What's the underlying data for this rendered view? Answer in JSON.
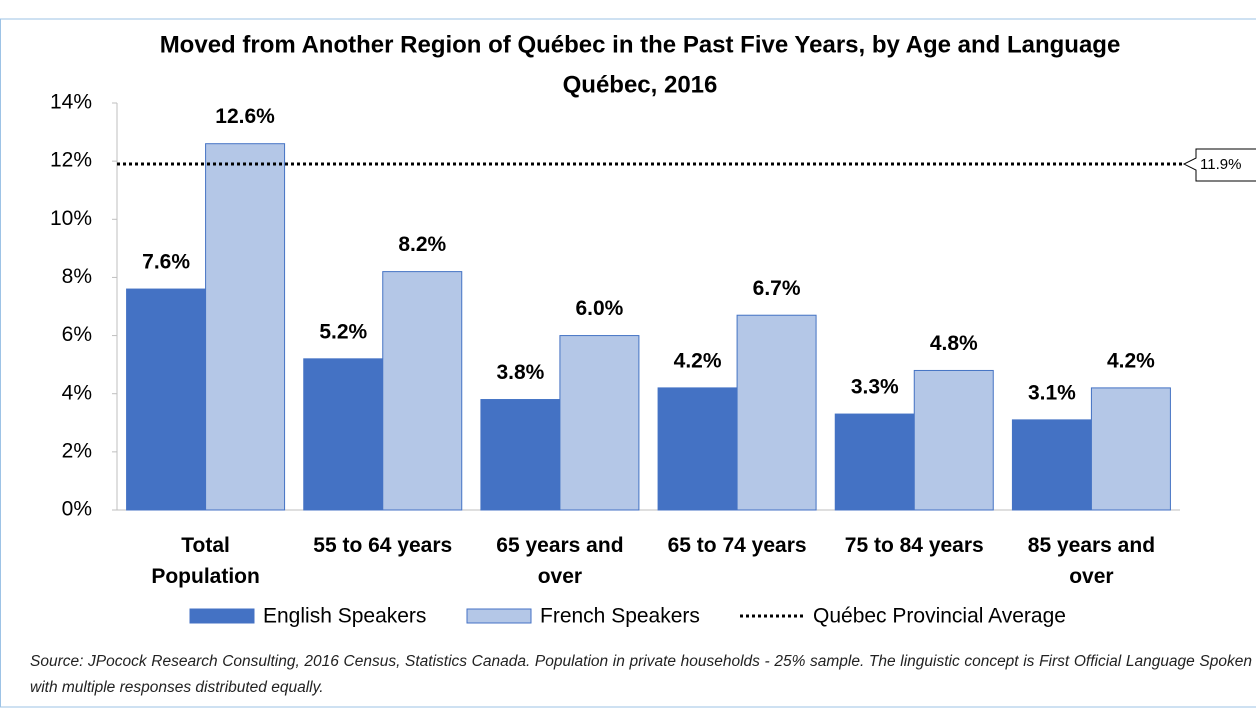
{
  "chart_data": {
    "type": "bar",
    "title": "Moved from Another Region of Québec in the Past Five Years, by Age and Language",
    "subtitle": "Québec, 2016",
    "categories": [
      "Total\nPopulation",
      "55 to 64 years",
      "65 years and\nover",
      "65 to 74 years",
      "75 to 84 years",
      "85 years and\nover"
    ],
    "series": [
      {
        "name": "English Speakers",
        "color": "#4472c4",
        "values": [
          7.6,
          5.2,
          3.8,
          4.2,
          3.3,
          3.1
        ],
        "value_labels": [
          "7.6%",
          "5.2%",
          "3.8%",
          "4.2%",
          "3.3%",
          "3.1%"
        ]
      },
      {
        "name": "French Speakers",
        "color": "#b4c7e7",
        "values": [
          12.6,
          8.2,
          6.0,
          6.7,
          4.8,
          4.2
        ],
        "value_labels": [
          "12.6%",
          "8.2%",
          "6.0%",
          "6.7%",
          "4.8%",
          "4.2%"
        ]
      }
    ],
    "reference": {
      "name": "Québec Provincial Average",
      "value": 11.9,
      "value_label": "11.9%"
    },
    "ylim": [
      0,
      14
    ],
    "yticks": [
      {
        "value": 0,
        "label": "0%"
      },
      {
        "value": 2,
        "label": "2%"
      },
      {
        "value": 4,
        "label": "4%"
      },
      {
        "value": 6,
        "label": "6%"
      },
      {
        "value": 8,
        "label": "8%"
      },
      {
        "value": 10,
        "label": "10%"
      },
      {
        "value": 12,
        "label": "12%"
      },
      {
        "value": 14,
        "label": "14%"
      }
    ],
    "grid": false,
    "legend": "bottom",
    "source": "Source: JPocock Research Consulting, 2016 Census, Statistics Canada. Population in private households - 25% sample. The linguistic concept is First Official Language Spoken with multiple responses distributed equally."
  }
}
